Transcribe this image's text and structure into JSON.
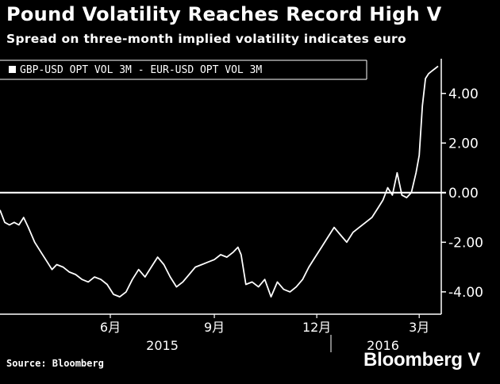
{
  "header": {
    "title": "Pound Volatility Reaches Record High V",
    "subtitle": "Spread on three-month implied volatility indicates euro"
  },
  "footer": {
    "source": "Source: Bloomberg",
    "brand": "Bloomberg",
    "brand_suffix": "V"
  },
  "colors": {
    "background": "#000000",
    "line": "#ffffff",
    "axis": "#ffffff"
  },
  "chart_data": {
    "type": "line",
    "title": "Pound Volatility Reaches Record High V",
    "subtitle": "Spread on three-month implied volatility indicates euro",
    "legend": [
      "GBP-USD OPT VOL 3M - EUR-USD OPT VOL 3M"
    ],
    "legend_position": "top-left",
    "xlabel": "",
    "ylabel": "",
    "y_axis_side": "right",
    "ylim": [
      -4.9,
      5.4
    ],
    "yticks": [
      4,
      2,
      0,
      -2,
      -4
    ],
    "ytick_labels": [
      "4.00",
      "2.00",
      "0.00",
      "-2.00",
      "-4.00"
    ],
    "x_ticks": [
      {
        "label": "6月",
        "index": 70
      },
      {
        "label": "9月",
        "index": 136
      },
      {
        "label": "12月",
        "index": 201
      },
      {
        "label": "3月",
        "index": 266
      }
    ],
    "x_groups": [
      {
        "label": "2015",
        "index": 103
      },
      {
        "label": "2016",
        "index": 243
      }
    ],
    "x_group_separator_index": 210,
    "x_range": [
      0,
      280
    ],
    "reference_line": 0,
    "series": [
      {
        "name": "GBP-USD OPT VOL 3M - EUR-USD OPT VOL 3M",
        "x": [
          0,
          3,
          6,
          9,
          12,
          15,
          18,
          22,
          26,
          30,
          33,
          36,
          40,
          44,
          48,
          52,
          56,
          60,
          64,
          68,
          72,
          76,
          80,
          84,
          88,
          92,
          96,
          100,
          104,
          108,
          112,
          116,
          120,
          124,
          128,
          132,
          136,
          140,
          144,
          148,
          151,
          153,
          156,
          160,
          164,
          168,
          172,
          176,
          180,
          184,
          188,
          192,
          196,
          200,
          204,
          208,
          212,
          216,
          220,
          224,
          228,
          232,
          236,
          240,
          243,
          246,
          249,
          252,
          255,
          258,
          261,
          264,
          266,
          268,
          270,
          272,
          274,
          276,
          278
        ],
        "values": [
          -0.7,
          -1.2,
          -1.3,
          -1.2,
          -1.3,
          -1.0,
          -1.4,
          -2.0,
          -2.4,
          -2.8,
          -3.1,
          -2.9,
          -3.0,
          -3.2,
          -3.3,
          -3.5,
          -3.6,
          -3.4,
          -3.5,
          -3.7,
          -4.1,
          -4.2,
          -4.0,
          -3.5,
          -3.1,
          -3.4,
          -3.0,
          -2.6,
          -2.9,
          -3.4,
          -3.8,
          -3.6,
          -3.3,
          -3.0,
          -2.9,
          -2.8,
          -2.7,
          -2.5,
          -2.6,
          -2.4,
          -2.2,
          -2.5,
          -3.7,
          -3.6,
          -3.8,
          -3.5,
          -4.2,
          -3.6,
          -3.9,
          -4.0,
          -3.8,
          -3.5,
          -3.0,
          -2.6,
          -2.2,
          -1.8,
          -1.4,
          -1.7,
          -2.0,
          -1.6,
          -1.4,
          -1.2,
          -1.0,
          -0.6,
          -0.3,
          0.2,
          -0.1,
          0.8,
          -0.1,
          -0.2,
          0.0,
          0.8,
          1.5,
          3.5,
          4.6,
          4.8,
          4.9,
          5.0,
          5.1
        ]
      }
    ]
  }
}
